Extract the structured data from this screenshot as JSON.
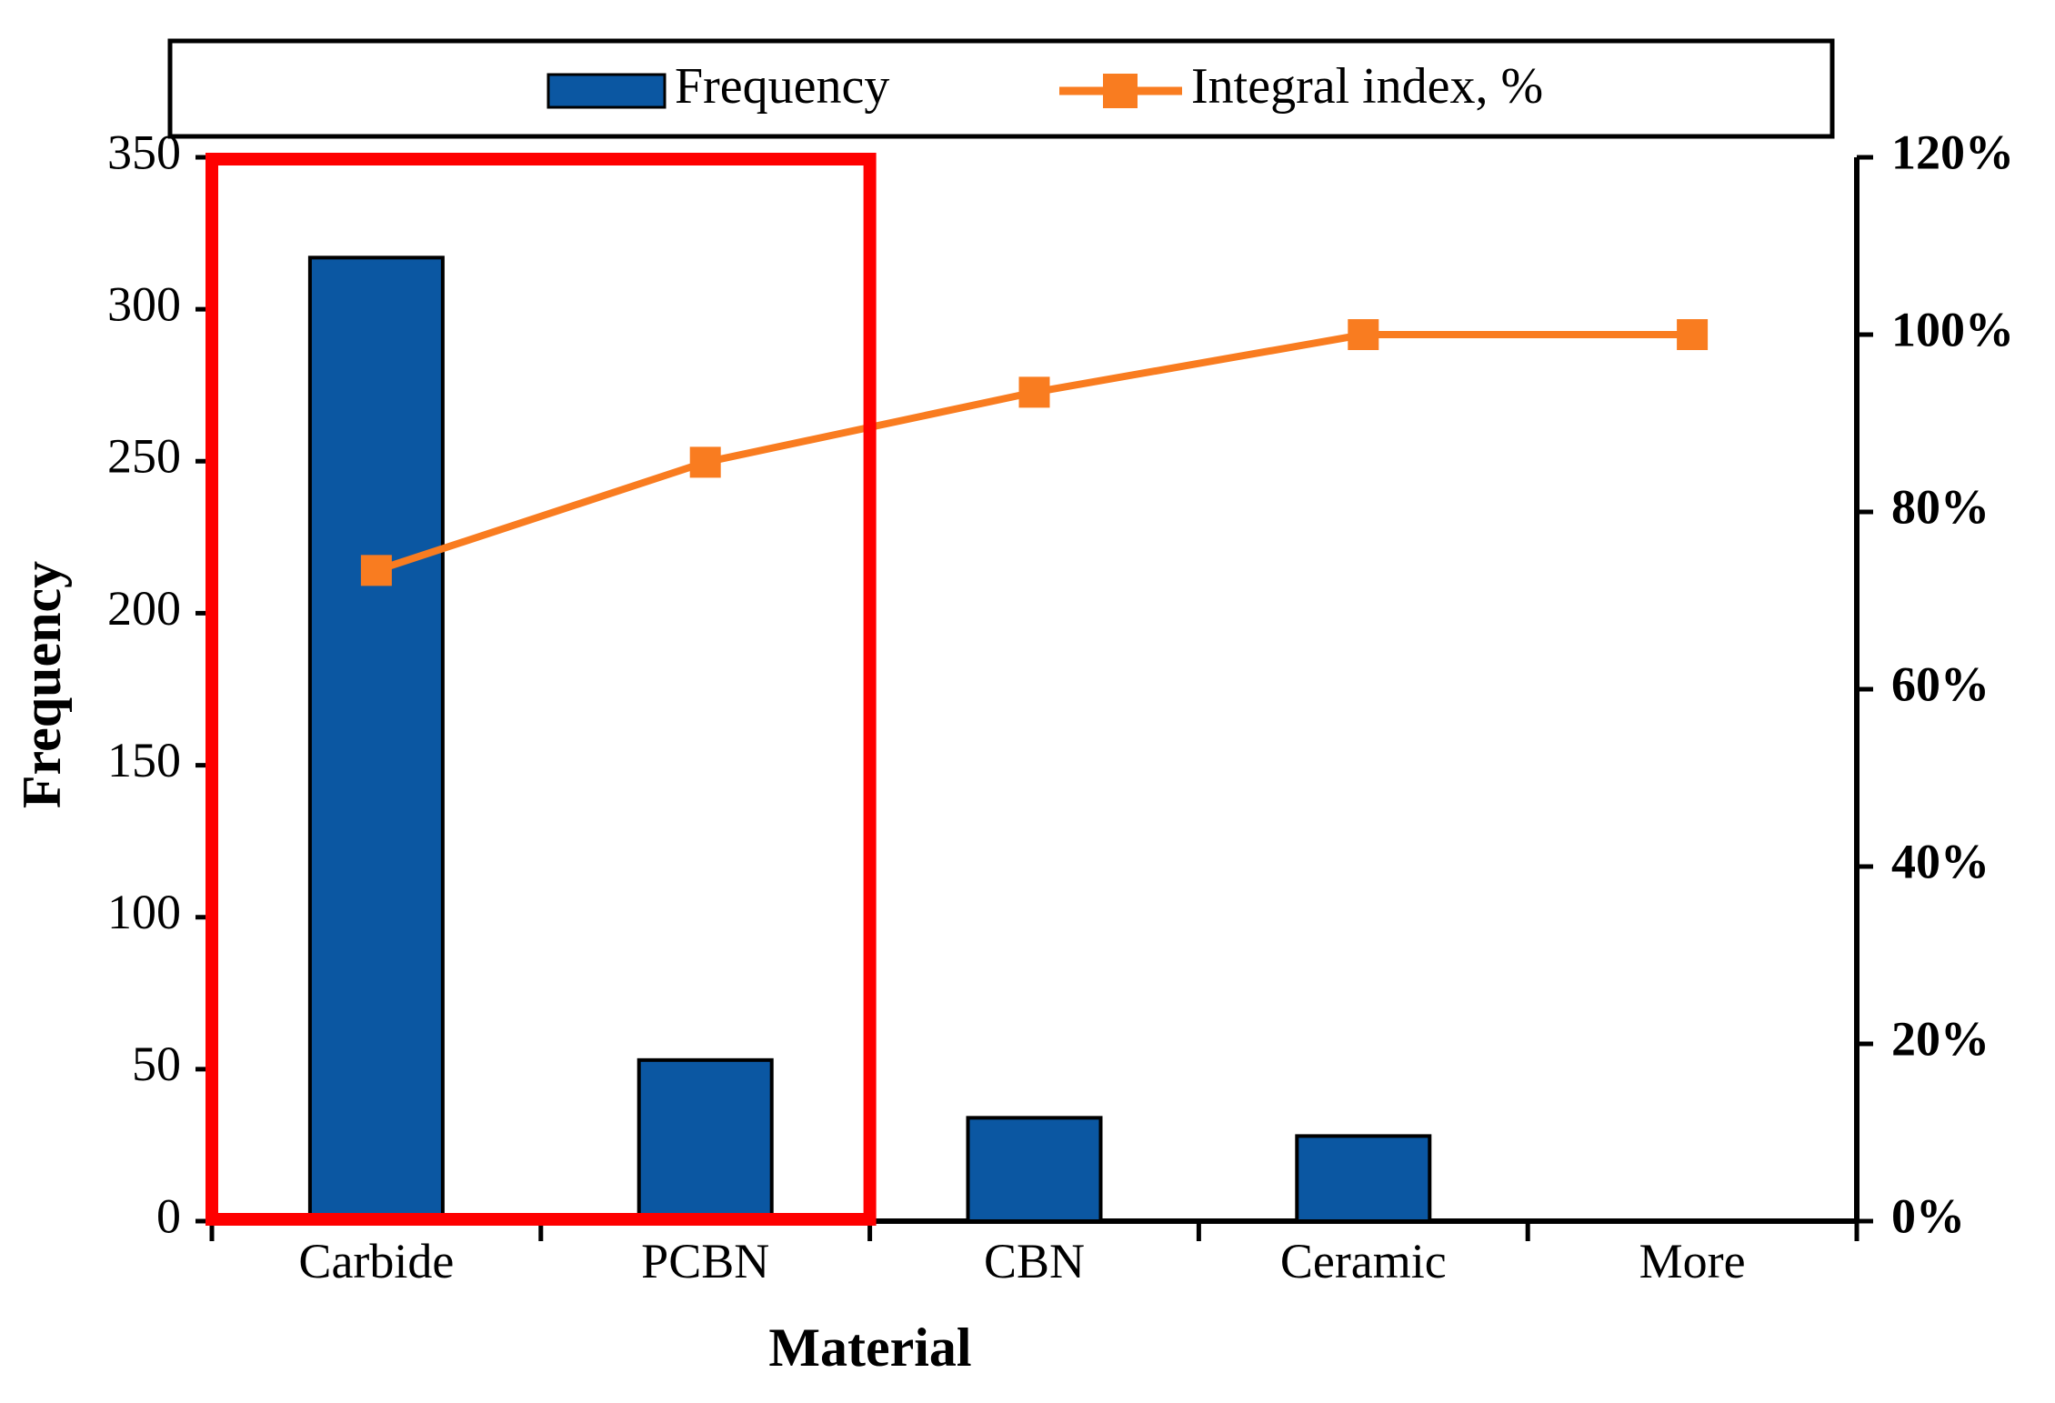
{
  "chart_data": {
    "type": "bar",
    "subtype": "pareto-combo-bar-line",
    "categories": [
      "Carbide",
      "PCBN",
      "CBN",
      "Ceramic",
      "More"
    ],
    "series": [
      {
        "name": "Frequency",
        "type": "bar",
        "axis": "left",
        "color": "#0B57A2",
        "values": [
          317,
          53,
          34,
          28,
          0
        ]
      },
      {
        "name": "Integral index, %",
        "type": "line",
        "axis": "right",
        "color": "#F97C20",
        "marker": "square",
        "values_percent": [
          73.4,
          85.6,
          93.5,
          100.0,
          100.0
        ]
      }
    ],
    "left_axis": {
      "label": "Frequency",
      "min": 0,
      "max": 350,
      "tick_step": 50,
      "ticks": [
        0,
        50,
        100,
        150,
        200,
        250,
        300,
        350
      ]
    },
    "right_axis": {
      "min": 0,
      "max": 120,
      "tick_step": 20,
      "ticks": [
        0,
        20,
        40,
        60,
        80,
        100,
        120
      ],
      "tick_labels": [
        "0%",
        "20%",
        "40%",
        "60%",
        "80%",
        "100%",
        "120%"
      ]
    },
    "x_axis": {
      "label": "Material"
    },
    "legend": {
      "position": "top",
      "entries": [
        "Frequency",
        "Integral index, %"
      ]
    },
    "annotation": {
      "type": "highlight-rectangle",
      "color": "#FE0000",
      "covers_categories": [
        "Carbide",
        "PCBN"
      ]
    },
    "grid": "off"
  },
  "colors": {
    "bar_fill": "#0B57A2",
    "bar_stroke": "#000000",
    "line": "#F97C20",
    "highlight": "#FE0000",
    "axis": "#000000",
    "background": "#FFFFFF"
  }
}
